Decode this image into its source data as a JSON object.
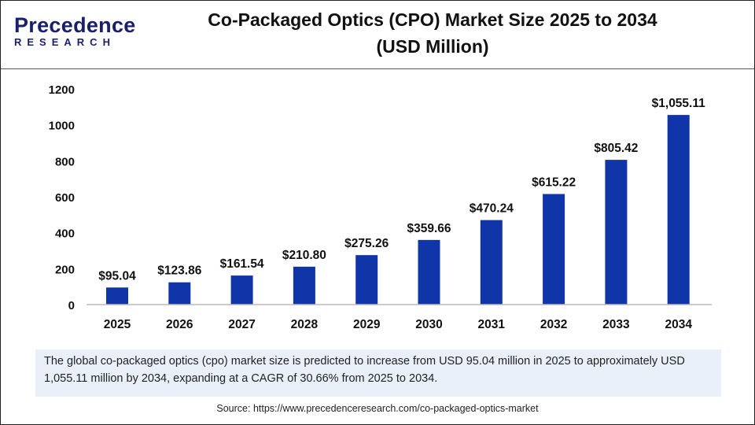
{
  "brand": {
    "logo_top": "Precedence",
    "logo_bottom": "RESEARCH"
  },
  "title_line1": "Co-Packaged Optics (CPO) Market Size 2025 to 2034",
  "title_line2": "(USD Million)",
  "chart_data": {
    "type": "bar",
    "title": "Co-Packaged Optics (CPO) Market Size 2025 to 2034 (USD Million)",
    "categories": [
      "2025",
      "2026",
      "2027",
      "2028",
      "2029",
      "2030",
      "2031",
      "2032",
      "2033",
      "2034"
    ],
    "values": [
      95.04,
      123.86,
      161.54,
      210.8,
      275.26,
      359.66,
      470.24,
      615.22,
      805.42,
      1055.11
    ],
    "data_labels": [
      "$95.04",
      "$123.86",
      "$161.54",
      "$210.80",
      "$275.26",
      "$359.66",
      "$470.24",
      "$615.22",
      "$805.42",
      "$1,055.11"
    ],
    "yticks": [
      0,
      200,
      400,
      600,
      800,
      1000,
      1200
    ],
    "ylim": [
      0,
      1200
    ],
    "grid": false,
    "bar_color": "#1035a8"
  },
  "summary": "The global co-packaged optics (cpo) market size is predicted to increase from USD 95.04 million in 2025 to approximately USD 1,055.11 million by 2034, expanding at a CAGR of 30.66% from 2025 to 2034.",
  "source": "Source: https://www.precedenceresearch.com/co-packaged-optics-market"
}
